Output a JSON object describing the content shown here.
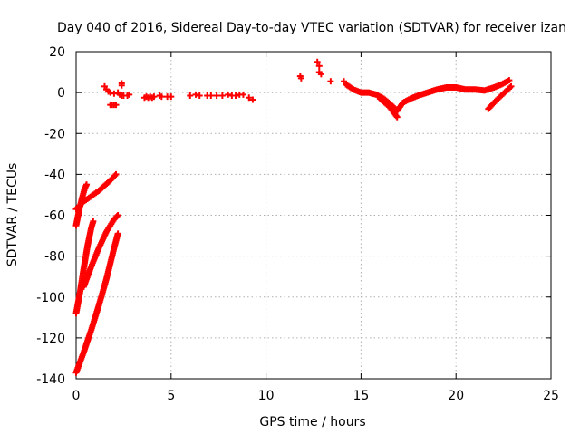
{
  "chart_data": {
    "type": "scatter",
    "title": "Day 040 of 2016, Sidereal Day-to-day VTEC variation (SDTVAR) for receiver izan",
    "xlabel": "GPS time / hours",
    "ylabel": "SDTVAR / TECUs",
    "xlim": [
      0,
      25
    ],
    "ylim": [
      -140,
      20
    ],
    "xticks": [
      0,
      5,
      10,
      15,
      20,
      25
    ],
    "yticks": [
      -140,
      -120,
      -100,
      -80,
      -60,
      -40,
      -20,
      0,
      20
    ],
    "grid": true,
    "marker": "plus",
    "color": "#ff0000",
    "series": [
      {
        "name": "dense-arc-from-minus-57",
        "style": "dense",
        "x": [
          0.0,
          0.3,
          0.6,
          0.9,
          1.2,
          1.5,
          1.8,
          2.1
        ],
        "y": [
          -57,
          -54,
          -52,
          -50,
          -48,
          -45.5,
          -43,
          -40
        ]
      },
      {
        "name": "dense-arc-from-minus-65",
        "style": "dense",
        "x": [
          0.0,
          0.15,
          0.3,
          0.45,
          0.55
        ],
        "y": [
          -65,
          -58,
          -52,
          -47,
          -45
        ]
      },
      {
        "name": "dense-arc-from-minus-108",
        "style": "dense",
        "x": [
          0.0,
          0.2,
          0.4,
          0.6,
          0.8,
          0.9
        ],
        "y": [
          -108,
          -98,
          -86,
          -75,
          -66,
          -63
        ]
      },
      {
        "name": "dense-arc-from-minus-95",
        "style": "dense",
        "x": [
          0.4,
          0.8,
          1.2,
          1.6,
          2.0,
          2.2
        ],
        "y": [
          -95,
          -85,
          -76,
          -68,
          -62,
          -60
        ]
      },
      {
        "name": "dense-arc-from-minus-137",
        "style": "dense",
        "x": [
          0.0,
          0.4,
          0.8,
          1.2,
          1.6,
          2.0,
          2.2
        ],
        "y": [
          -137,
          -127,
          -116,
          -104,
          -91,
          -76,
          -69
        ]
      },
      {
        "name": "sparse-near-zero-early",
        "style": "sparse",
        "x": [
          1.5,
          1.6,
          1.7,
          1.8,
          2.0,
          2.2,
          2.3,
          2.4,
          2.5,
          2.7,
          2.8,
          1.8,
          1.9,
          2.0,
          2.1
        ],
        "y": [
          3,
          1.5,
          0.5,
          0,
          -0.5,
          0,
          -1,
          -1.5,
          -1.5,
          -1.5,
          -1,
          -6,
          -6,
          -6,
          -6
        ]
      },
      {
        "name": "sparse-spike-2.4",
        "style": "sparse",
        "x": [
          2.4,
          2.4
        ],
        "y": [
          4.5,
          3.5
        ]
      },
      {
        "name": "sparse-near-zero-mid",
        "style": "sparse",
        "x": [
          3.6,
          3.7,
          3.8,
          3.9,
          4.0,
          4.1,
          4.4,
          4.5,
          4.8,
          5.0,
          6.0,
          6.3,
          6.5,
          6.9,
          7.1,
          7.4,
          7.7,
          8.0,
          8.2,
          8.4,
          8.6,
          8.8,
          9.1,
          9.3
        ],
        "y": [
          -2.5,
          -2,
          -2.5,
          -2,
          -2.5,
          -2,
          -1.5,
          -2,
          -2,
          -2,
          -1.5,
          -1,
          -1.5,
          -1.5,
          -1.5,
          -1.5,
          -1.5,
          -1,
          -1.5,
          -1.5,
          -1,
          -1,
          -2.5,
          -3.5
        ]
      },
      {
        "name": "sparse-isolated-late",
        "style": "sparse",
        "x": [
          11.8,
          11.85,
          12.7,
          12.8,
          12.8,
          12.9,
          13.4,
          14.1
        ],
        "y": [
          8,
          7,
          15,
          13,
          10,
          9,
          5.5,
          5.5
        ]
      },
      {
        "name": "dense-band-late",
        "style": "dense",
        "x": [
          14.2,
          14.6,
          15.0,
          15.4,
          15.8,
          16.2,
          16.6,
          16.9,
          17.2,
          17.6,
          18.0,
          18.5,
          19.0,
          19.5,
          20.0,
          20.5,
          21.0,
          21.5,
          22.0,
          22.4,
          22.8
        ],
        "y": [
          4,
          1.5,
          0,
          0,
          -1,
          -3,
          -6,
          -9,
          -5,
          -3,
          -1.5,
          0,
          1.5,
          2.5,
          2.5,
          1.5,
          1.5,
          1,
          2.5,
          4,
          6
        ]
      },
      {
        "name": "dense-descending-late",
        "style": "dense",
        "x": [
          16.0,
          16.5,
          16.9
        ],
        "y": [
          -3,
          -7,
          -12
        ]
      },
      {
        "name": "dense-ascending-late",
        "style": "dense",
        "x": [
          21.7,
          22.1,
          22.5,
          22.9
        ],
        "y": [
          -8,
          -4,
          -0.5,
          3
        ]
      }
    ]
  }
}
